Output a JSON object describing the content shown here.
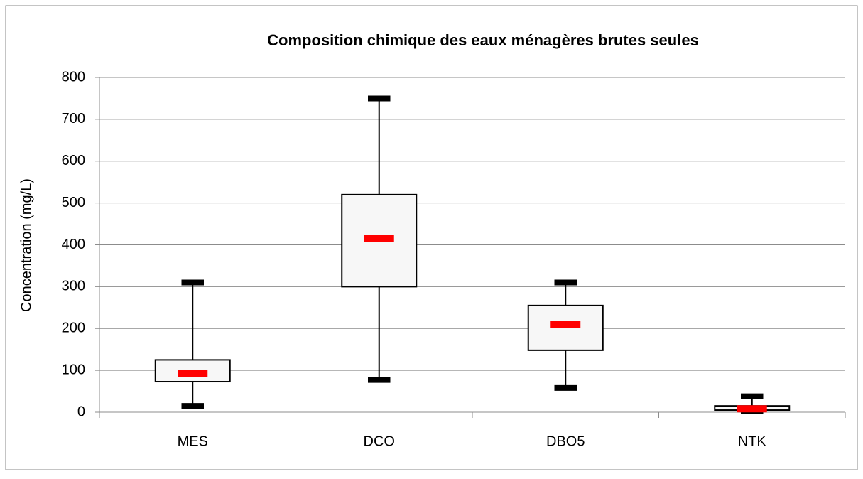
{
  "chart_data": {
    "type": "box",
    "title": "Composition chimique des eaux ménagères brutes seules",
    "y_label": "Concentration (mg/L)",
    "categories": [
      "MES",
      "DCO",
      "DBO5",
      "NTK"
    ],
    "min": [
      15,
      77,
      58,
      2
    ],
    "q1": [
      73,
      300,
      148,
      5
    ],
    "median": [
      93,
      415,
      210,
      8
    ],
    "q3": [
      125,
      520,
      255,
      15
    ],
    "max": [
      310,
      750,
      310,
      38
    ],
    "box_color": "#f7f7f7",
    "median_color": "#ff0000",
    "ylim": [
      0,
      800
    ],
    "yticks": [
      0,
      100,
      200,
      300,
      400,
      500,
      600,
      700,
      800
    ],
    "grid": true
  }
}
